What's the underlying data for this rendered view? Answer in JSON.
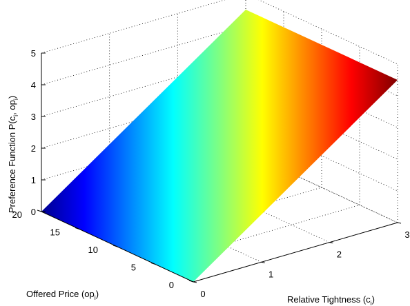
{
  "chart_data": {
    "type": "surface",
    "title": "",
    "xlabel_main": "Relative Tightness (c",
    "xlabel_sub": "i",
    "xlabel_end": ")",
    "ylabel_main": "Offered Price (op",
    "ylabel_sub": "i",
    "ylabel_end": ")",
    "zlabel_main": "Preference Function P(c",
    "zlabel_sub1": "i",
    "zlabel_mid": ", op",
    "zlabel_sub2": "i",
    "zlabel_end": ")",
    "xlim": [
      0,
      3
    ],
    "ylim": [
      0,
      20
    ],
    "zlim": [
      0,
      5
    ],
    "x_ticks": [
      "0",
      "1",
      "2",
      "3"
    ],
    "y_ticks": [
      "0",
      "5",
      "10",
      "15",
      "20"
    ],
    "z_ticks": [
      "0",
      "1",
      "2",
      "3",
      "4",
      "5"
    ],
    "grid": true,
    "colormap": "jet",
    "surface_corners": [
      {
        "x": 0,
        "y": 0,
        "z": 0
      },
      {
        "x": 0,
        "y": 20,
        "z": 0
      },
      {
        "x": 3,
        "y": 20,
        "z": 4.5
      },
      {
        "x": 3,
        "y": 0,
        "z": 4.5
      }
    ]
  }
}
